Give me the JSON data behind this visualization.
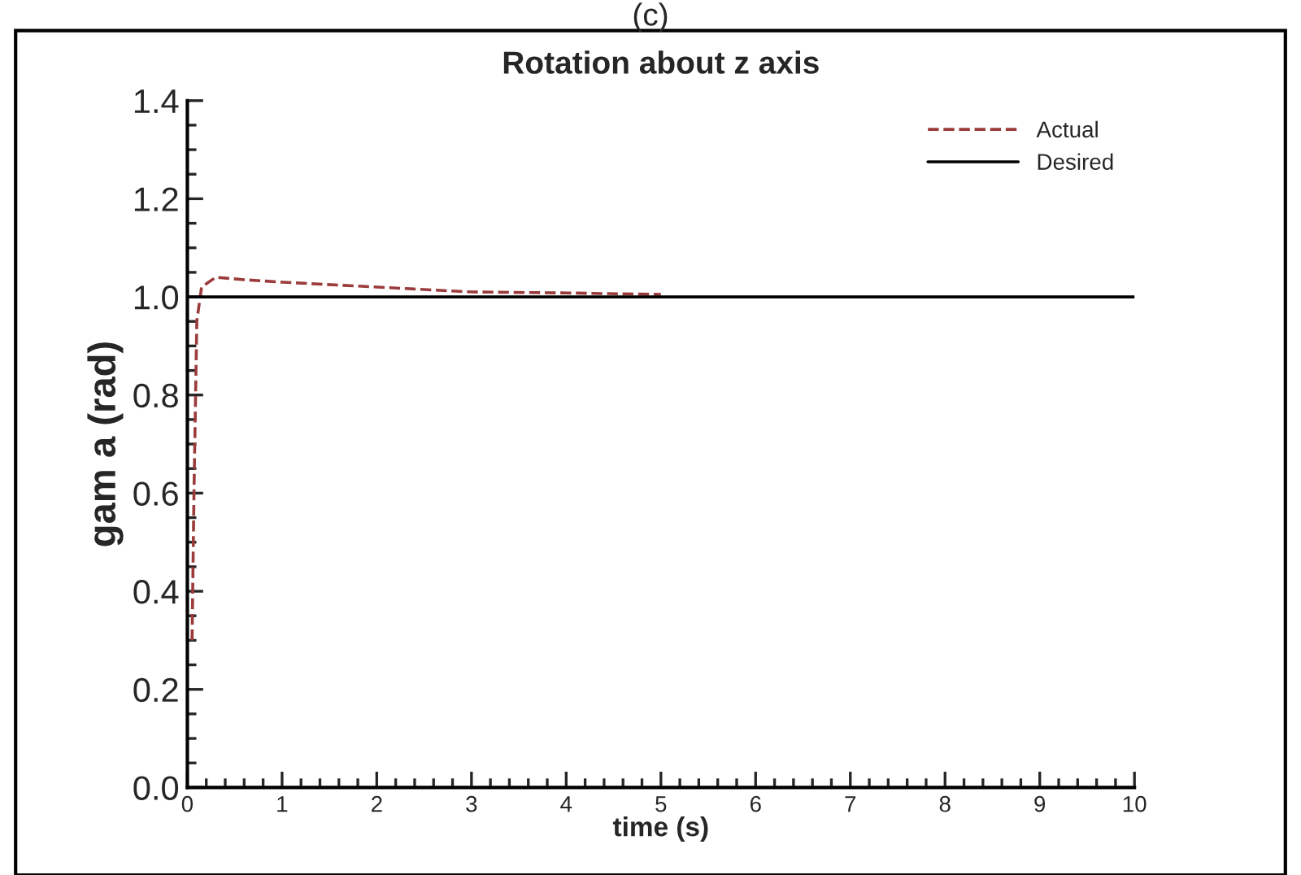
{
  "chart_data": {
    "type": "line",
    "title": "Rotation about z axis",
    "xlabel": "time (s)",
    "ylabel": "gam a (rad)",
    "annotations": [
      "(c)"
    ],
    "xlim": [
      0,
      10
    ],
    "ylim": [
      0,
      1.4
    ],
    "xticks": [
      0,
      1,
      2,
      3,
      4,
      5,
      6,
      7,
      8,
      9,
      10
    ],
    "yticks": [
      {
        "value": 0,
        "label": "0.0"
      },
      {
        "value": 0.2,
        "label": "0.2"
      },
      {
        "value": 0.4,
        "label": "0.4"
      },
      {
        "value": 0.6,
        "label": "0.6"
      },
      {
        "value": 0.8,
        "label": "0.8"
      },
      {
        "value": 1.0,
        "label": "1.0"
      },
      {
        "value": 1.2,
        "label": "1.2"
      },
      {
        "value": 1.4,
        "label": "1.4"
      }
    ],
    "grid": false,
    "legend": "top right",
    "series": [
      {
        "name": "Actual",
        "color": "#9b3b3b",
        "line_style": "dashed",
        "x": [
          0.05,
          0.07,
          0.1,
          0.15,
          0.3,
          0.6,
          1,
          2,
          3,
          4,
          5
        ],
        "values": [
          0.3,
          0.6,
          0.95,
          1.02,
          1.04,
          1.035,
          1.03,
          1.02,
          1.01,
          1.008,
          1.005
        ]
      },
      {
        "name": "Desired",
        "color": "#000000",
        "line_style": "solid",
        "x": [
          0,
          10
        ],
        "values": [
          1.0,
          1.0
        ]
      }
    ]
  }
}
